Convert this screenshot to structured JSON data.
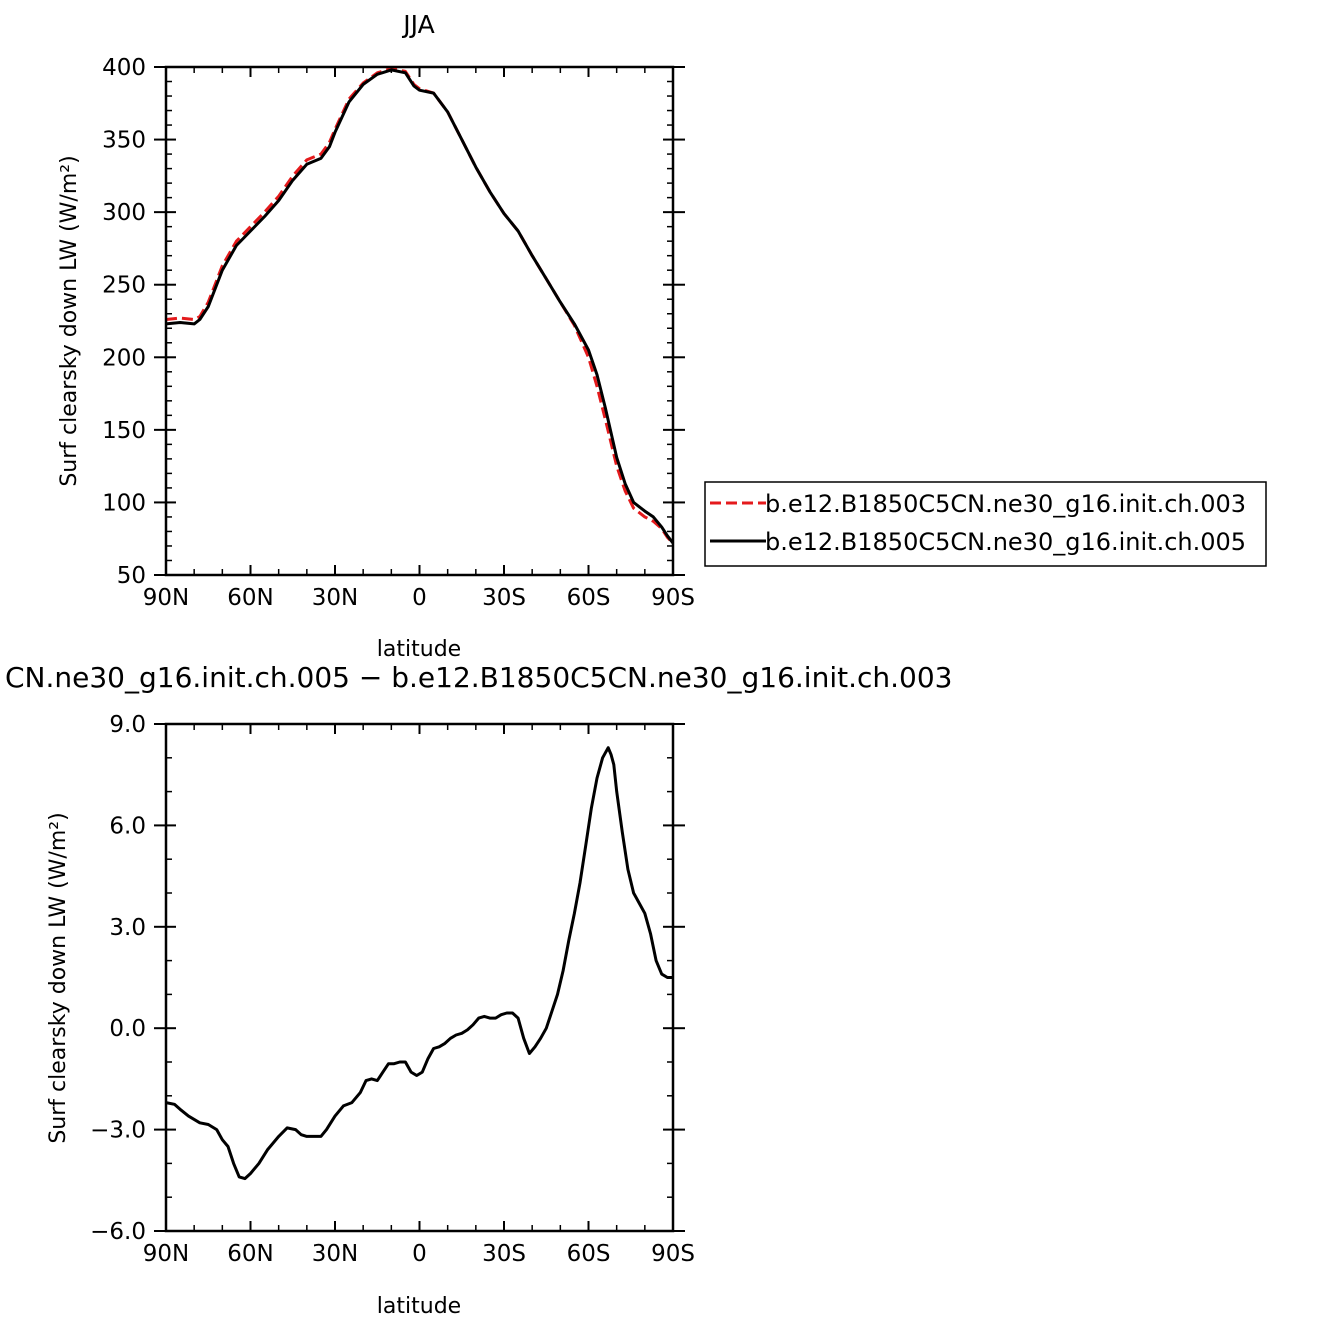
{
  "chart_data": [
    {
      "type": "line",
      "title": "JJA",
      "xlabel": "latitude",
      "ylabel": "Surf clearsky down LW (W/m²)",
      "xlim": [
        90,
        -90
      ],
      "ylim": [
        50,
        400
      ],
      "x_ticks": [
        {
          "value": 90,
          "label": "90N"
        },
        {
          "value": 60,
          "label": "60N"
        },
        {
          "value": 30,
          "label": "30N"
        },
        {
          "value": 0,
          "label": "0"
        },
        {
          "value": -30,
          "label": "30S"
        },
        {
          "value": -60,
          "label": "60S"
        },
        {
          "value": -90,
          "label": "90S"
        }
      ],
      "y_ticks": [
        {
          "value": 50,
          "label": "50"
        },
        {
          "value": 100,
          "label": "100"
        },
        {
          "value": 150,
          "label": "150"
        },
        {
          "value": 200,
          "label": "200"
        },
        {
          "value": 250,
          "label": "250"
        },
        {
          "value": 300,
          "label": "300"
        },
        {
          "value": 350,
          "label": "350"
        },
        {
          "value": 400,
          "label": "400"
        }
      ],
      "legend_position": "right",
      "series": [
        {
          "name": "b.e12.B1850C5CN.ne30_g16.init.ch.003",
          "color": "#e41a1c",
          "dash": "dashed",
          "x": [
            90,
            85,
            80,
            78,
            75,
            70,
            65,
            60,
            55,
            50,
            45,
            40,
            35,
            32,
            30,
            25,
            20,
            15,
            10,
            5,
            2,
            0,
            -5,
            -10,
            -15,
            -20,
            -25,
            -30,
            -35,
            -40,
            -45,
            -50,
            -55,
            -60,
            -63,
            -66,
            -70,
            -73,
            -76,
            -80,
            -83,
            -86,
            -88,
            -90
          ],
          "y": [
            226,
            227,
            226,
            228,
            238,
            263,
            280,
            290,
            300,
            311,
            325,
            336,
            340,
            348,
            357,
            378,
            389,
            396,
            399,
            397,
            388,
            385,
            382,
            369,
            350,
            331,
            314,
            299,
            287,
            270,
            254,
            238,
            222,
            200,
            180,
            157,
            125,
            108,
            96,
            90,
            87,
            82,
            76,
            72
          ]
        },
        {
          "name": "b.e12.B1850C5CN.ne30_g16.init.ch.005",
          "color": "#000000",
          "dash": "solid",
          "x": [
            90,
            85,
            80,
            78,
            75,
            70,
            65,
            60,
            55,
            50,
            45,
            40,
            35,
            32,
            30,
            25,
            20,
            15,
            10,
            5,
            2,
            0,
            -5,
            -10,
            -15,
            -20,
            -25,
            -30,
            -35,
            -40,
            -45,
            -50,
            -55,
            -60,
            -63,
            -66,
            -70,
            -73,
            -76,
            -80,
            -83,
            -86,
            -88,
            -90
          ],
          "y": [
            223,
            224,
            223,
            226,
            235,
            260,
            277,
            287,
            297,
            308,
            322,
            333,
            337,
            345,
            355,
            376,
            388,
            395,
            398,
            396,
            387,
            384,
            382,
            369,
            350,
            331,
            314,
            299,
            287,
            270,
            254,
            238,
            223,
            205,
            188,
            165,
            131,
            113,
            100,
            94,
            90,
            83,
            77,
            72
          ]
        }
      ]
    },
    {
      "type": "line",
      "title": "CN.ne30_g16.init.ch.005 − b.e12.B1850C5CN.ne30_g16.init.ch.003",
      "xlabel": "latitude",
      "ylabel": "Surf clearsky down LW (W/m²)",
      "xlim": [
        90,
        -90
      ],
      "ylim": [
        -6,
        9
      ],
      "x_ticks": [
        {
          "value": 90,
          "label": "90N"
        },
        {
          "value": 60,
          "label": "60N"
        },
        {
          "value": 30,
          "label": "30N"
        },
        {
          "value": 0,
          "label": "0"
        },
        {
          "value": -30,
          "label": "30S"
        },
        {
          "value": -60,
          "label": "60S"
        },
        {
          "value": -90,
          "label": "90S"
        }
      ],
      "y_ticks": [
        {
          "value": -6,
          "label": "−6.0"
        },
        {
          "value": -3,
          "label": "−3.0"
        },
        {
          "value": 0,
          "label": "0.0"
        },
        {
          "value": 3,
          "label": "3.0"
        },
        {
          "value": 6,
          "label": "6.0"
        },
        {
          "value": 9,
          "label": "9.0"
        }
      ],
      "series": [
        {
          "name": "",
          "color": "#000000",
          "dash": "solid",
          "x": [
            90,
            87,
            85,
            82,
            78,
            75,
            72,
            70,
            68,
            66,
            64,
            62,
            60,
            57,
            54,
            50,
            47,
            44,
            42,
            40,
            38,
            35,
            33,
            30,
            27,
            24,
            21,
            19,
            17,
            15,
            13,
            11,
            9,
            7,
            5,
            3,
            1,
            -1,
            -3,
            -5,
            -7,
            -9,
            -11,
            -13,
            -15,
            -17,
            -19,
            -21,
            -23,
            -25,
            -27,
            -29,
            -31,
            -33,
            -35,
            -37,
            -39,
            -41,
            -43,
            -45,
            -47,
            -49,
            -51,
            -53,
            -55,
            -57,
            -59,
            -61,
            -63,
            -65,
            -67,
            -68,
            -69,
            -70,
            -72,
            -74,
            -76,
            -78,
            -80,
            -82,
            -84,
            -86,
            -88,
            -90
          ],
          "y": [
            -2.2,
            -2.25,
            -2.4,
            -2.6,
            -2.8,
            -2.85,
            -3.0,
            -3.3,
            -3.5,
            -4.0,
            -4.4,
            -4.45,
            -4.3,
            -4.0,
            -3.6,
            -3.2,
            -2.95,
            -3.0,
            -3.15,
            -3.2,
            -3.2,
            -3.2,
            -3.0,
            -2.6,
            -2.3,
            -2.2,
            -1.9,
            -1.55,
            -1.5,
            -1.55,
            -1.3,
            -1.05,
            -1.05,
            -1.0,
            -1.0,
            -1.3,
            -1.4,
            -1.3,
            -0.9,
            -0.6,
            -0.55,
            -0.45,
            -0.3,
            -0.2,
            -0.15,
            -0.05,
            0.1,
            0.3,
            0.35,
            0.3,
            0.3,
            0.4,
            0.45,
            0.45,
            0.3,
            -0.3,
            -0.75,
            -0.55,
            -0.3,
            0.0,
            0.5,
            1.0,
            1.7,
            2.6,
            3.4,
            4.3,
            5.4,
            6.5,
            7.4,
            8.0,
            8.3,
            8.1,
            7.8,
            7.0,
            5.8,
            4.7,
            4.0,
            3.7,
            3.4,
            2.8,
            2.0,
            1.6,
            1.5,
            1.5
          ]
        }
      ]
    }
  ]
}
